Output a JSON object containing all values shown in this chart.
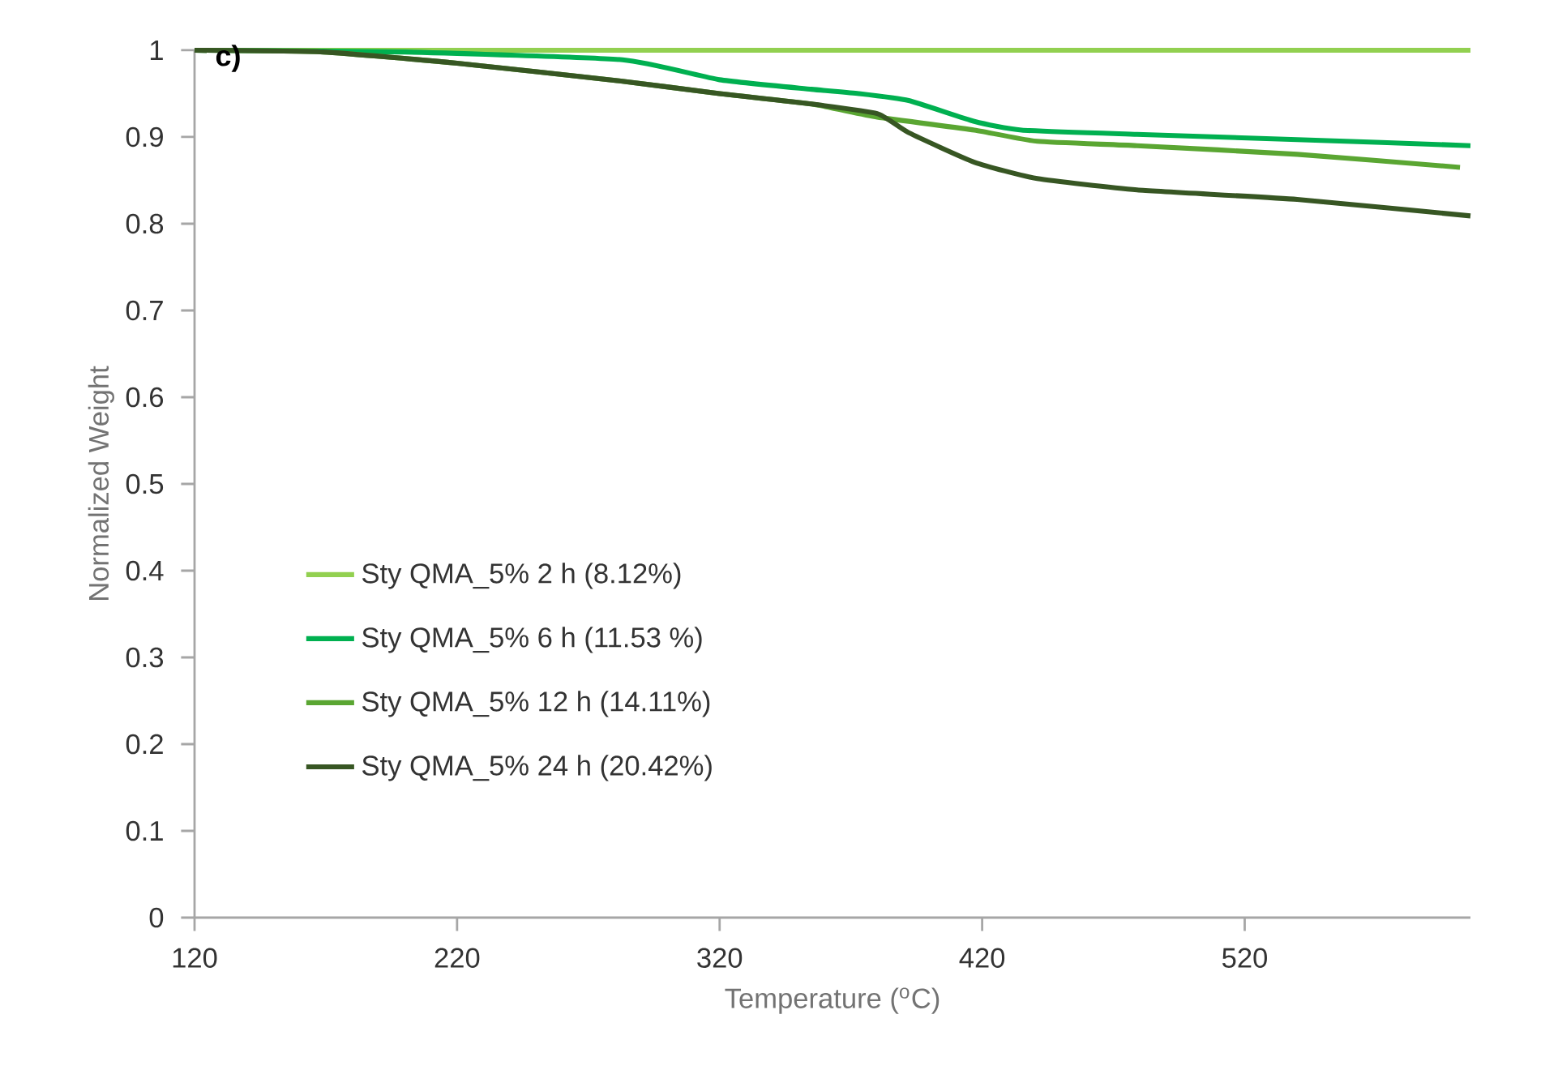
{
  "chart_data": {
    "type": "line",
    "title": "c)",
    "xlabel": "Temperature ($^{o}$C)",
    "ylabel": "Normalized Weight",
    "xlim": [
      120,
      606
    ],
    "xticks": [
      120,
      220,
      320,
      420,
      520
    ],
    "ylim": [
      0,
      1
    ],
    "yticks": [
      0,
      0.1,
      0.2,
      0.3,
      0.4,
      0.5,
      0.6,
      0.7,
      0.8,
      0.9,
      1
    ],
    "grid": false,
    "legend": "left",
    "marker": "none",
    "line_style": "solid",
    "series": [
      {
        "name": "Sty QMA_5% 2 h (8.12%)",
        "color": "#92d050",
        "x": [
          120,
          200,
          300,
          400,
          500,
          606
        ],
        "values": [
          1,
          1,
          1,
          1,
          1,
          1
        ]
      },
      {
        "name": "Sty QMA_5% 6 h (11.53 %)",
        "color": "#00b050",
        "x": [
          120,
          200,
          283,
          320,
          355,
          373,
          392,
          417,
          435,
          479,
          540,
          606
        ],
        "values": [
          1,
          0.998,
          0.989,
          0.966,
          0.955,
          0.95,
          0.942,
          0.918,
          0.908,
          0.903,
          0.897,
          0.89
        ]
      },
      {
        "name": "Sty QMA_5% 12 h (14.11%)",
        "color": "#5aa632",
        "x": [
          120,
          169,
          220,
          281,
          320,
          355,
          380,
          417,
          441,
          479,
          540,
          602
        ],
        "values": [
          1,
          0.998,
          0.985,
          0.965,
          0.95,
          0.938,
          0.923,
          0.908,
          0.895,
          0.89,
          0.88,
          0.865
        ]
      },
      {
        "name": "Sty QMA_5% 24 h (20.42%)",
        "color": "#375623",
        "x": [
          120,
          169,
          220,
          281,
          320,
          355,
          380,
          392,
          417,
          441,
          479,
          540,
          606
        ],
        "values": [
          1,
          0.998,
          0.985,
          0.965,
          0.95,
          0.938,
          0.927,
          0.905,
          0.871,
          0.852,
          0.839,
          0.828,
          0.809
        ]
      }
    ]
  }
}
